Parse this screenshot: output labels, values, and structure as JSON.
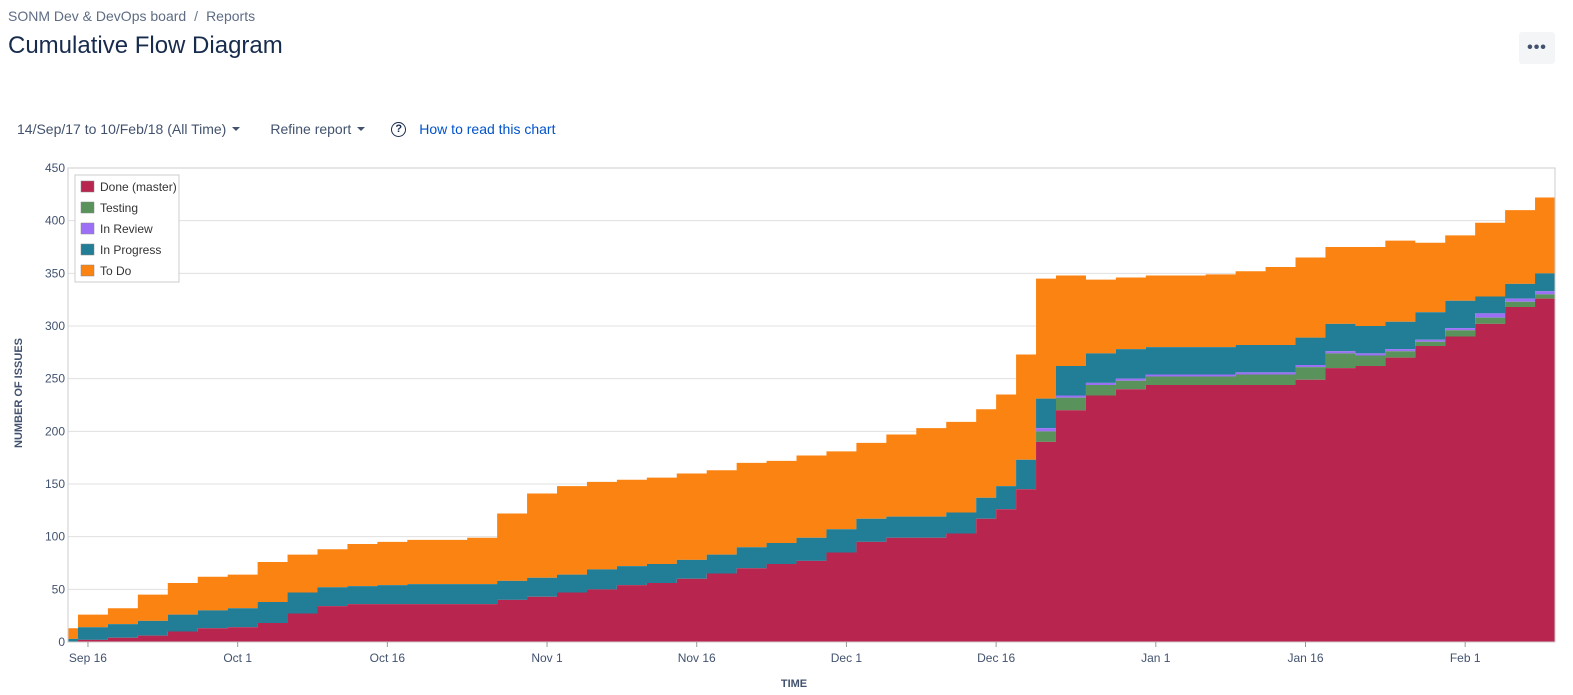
{
  "breadcrumb": {
    "board": "SONM Dev & DevOps board",
    "separator": "/",
    "reports": "Reports"
  },
  "page_title": "Cumulative Flow Diagram",
  "more_button": {
    "icon": "more-icon",
    "label": "•••"
  },
  "controls": {
    "date_range": "14/Sep/17 to 10/Feb/18 (All Time)",
    "refine": "Refine report",
    "help_icon": "question-circle-icon",
    "help_glyph": "?",
    "help_link": "How to read this chart"
  },
  "chart_data": {
    "type": "area",
    "stacked": true,
    "xlabel": "TIME",
    "ylabel": "NUMBER OF ISSUES",
    "ylim": [
      0,
      450
    ],
    "xlim": [
      "2017-09-14",
      "2018-02-10"
    ],
    "y_ticks": [
      "0",
      "50",
      "100",
      "150",
      "200",
      "250",
      "300",
      "350",
      "400",
      "450"
    ],
    "x_ticks": [
      {
        "date": "2017-09-16",
        "label": "Sep 16"
      },
      {
        "date": "2017-10-01",
        "label": "Oct 1"
      },
      {
        "date": "2017-10-16",
        "label": "Oct 16"
      },
      {
        "date": "2017-11-01",
        "label": "Nov 1"
      },
      {
        "date": "2017-11-16",
        "label": "Nov 16"
      },
      {
        "date": "2017-12-01",
        "label": "Dec 1"
      },
      {
        "date": "2017-12-16",
        "label": "Dec 16"
      },
      {
        "date": "2018-01-01",
        "label": "Jan 1"
      },
      {
        "date": "2018-01-16",
        "label": "Jan 16"
      },
      {
        "date": "2018-02-01",
        "label": "Feb 1"
      }
    ],
    "grid": true,
    "legend_position": "top-left",
    "legend": [
      "Done (master)",
      "Testing",
      "In Review",
      "In Progress",
      "To Do"
    ],
    "colors": {
      "Done (master)": "#b8254e",
      "Testing": "#59925a",
      "In Review": "#9c6ff7",
      "In Progress": "#217e96",
      "To Do": "#fb8311"
    },
    "x": [
      "2017-09-14",
      "2017-09-15",
      "2017-09-18",
      "2017-09-21",
      "2017-09-24",
      "2017-09-27",
      "2017-09-30",
      "2017-10-03",
      "2017-10-06",
      "2017-10-09",
      "2017-10-12",
      "2017-10-15",
      "2017-10-18",
      "2017-10-21",
      "2017-10-24",
      "2017-10-27",
      "2017-10-30",
      "2017-11-02",
      "2017-11-05",
      "2017-11-08",
      "2017-11-11",
      "2017-11-14",
      "2017-11-17",
      "2017-11-20",
      "2017-11-23",
      "2017-11-26",
      "2017-11-29",
      "2017-12-02",
      "2017-12-05",
      "2017-12-08",
      "2017-12-11",
      "2017-12-14",
      "2017-12-16",
      "2017-12-18",
      "2017-12-20",
      "2017-12-22",
      "2017-12-25",
      "2017-12-28",
      "2017-12-31",
      "2018-01-03",
      "2018-01-06",
      "2018-01-09",
      "2018-01-12",
      "2018-01-15",
      "2018-01-18",
      "2018-01-21",
      "2018-01-24",
      "2018-01-27",
      "2018-01-30",
      "2018-02-02",
      "2018-02-05",
      "2018-02-08",
      "2018-02-10"
    ],
    "series": [
      {
        "name": "Done (master)",
        "values": [
          0,
          2,
          4,
          6,
          10,
          13,
          14,
          18,
          27,
          34,
          36,
          36,
          36,
          36,
          36,
          40,
          43,
          47,
          50,
          54,
          56,
          60,
          65,
          70,
          74,
          77,
          85,
          95,
          99,
          99,
          103,
          117,
          126,
          145,
          190,
          220,
          234,
          240,
          244,
          244,
          244,
          244,
          244,
          249,
          260,
          262,
          270,
          281,
          290,
          302,
          318,
          326,
          338
        ]
      },
      {
        "name": "Testing",
        "values": [
          0,
          0,
          0,
          0,
          0,
          0,
          0,
          0,
          0,
          0,
          0,
          0,
          0,
          0,
          0,
          0,
          0,
          0,
          0,
          0,
          0,
          0,
          0,
          0,
          0,
          0,
          0,
          0,
          0,
          0,
          0,
          0,
          0,
          0,
          10,
          12,
          10,
          8,
          8,
          8,
          8,
          10,
          10,
          12,
          14,
          10,
          6,
          4,
          6,
          6,
          5,
          4,
          4
        ]
      },
      {
        "name": "In Review",
        "values": [
          0,
          0,
          0,
          0,
          0,
          0,
          0,
          0,
          0,
          0,
          0,
          0,
          0,
          0,
          0,
          0,
          0,
          0,
          0,
          0,
          0,
          0,
          0,
          0,
          0,
          0,
          0,
          0,
          0,
          0,
          0,
          0,
          0,
          0,
          3,
          2,
          2,
          2,
          2,
          2,
          2,
          2,
          2,
          2,
          2,
          2,
          2,
          2,
          2,
          4,
          3,
          3,
          3
        ]
      },
      {
        "name": "In Progress",
        "values": [
          3,
          12,
          13,
          14,
          16,
          17,
          18,
          20,
          20,
          18,
          17,
          18,
          19,
          19,
          19,
          18,
          18,
          17,
          19,
          18,
          18,
          18,
          18,
          20,
          20,
          22,
          22,
          22,
          20,
          20,
          20,
          20,
          22,
          28,
          28,
          28,
          28,
          28,
          26,
          26,
          26,
          26,
          26,
          26,
          26,
          26,
          26,
          26,
          26,
          16,
          14,
          17,
          18
        ]
      },
      {
        "name": "To Do",
        "values": [
          10,
          12,
          15,
          25,
          30,
          32,
          32,
          38,
          36,
          36,
          40,
          41,
          42,
          42,
          44,
          64,
          80,
          84,
          83,
          82,
          82,
          82,
          80,
          80,
          78,
          78,
          74,
          72,
          78,
          84,
          86,
          84,
          87,
          100,
          114,
          86,
          70,
          68,
          68,
          68,
          69,
          70,
          74,
          76,
          73,
          75,
          77,
          66,
          62,
          70,
          70,
          72,
          76
        ]
      }
    ]
  }
}
